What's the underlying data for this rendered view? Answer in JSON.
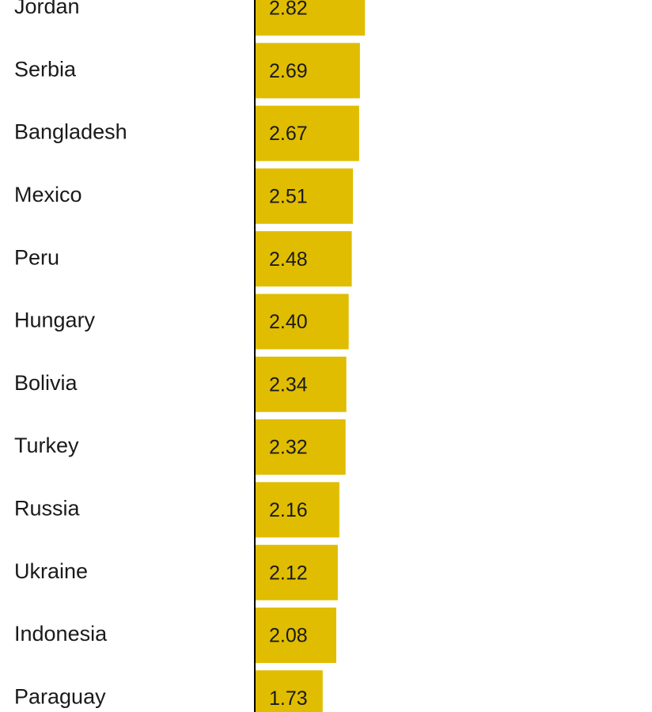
{
  "chart_data": {
    "type": "bar",
    "orientation": "horizontal",
    "categories": [
      "Jordan",
      "Serbia",
      "Bangladesh",
      "Mexico",
      "Peru",
      "Hungary",
      "Bolivia",
      "Turkey",
      "Russia",
      "Ukraine",
      "Indonesia",
      "Paraguay"
    ],
    "values": [
      2.82,
      2.69,
      2.67,
      2.51,
      2.48,
      2.4,
      2.34,
      2.32,
      2.16,
      2.12,
      2.08,
      1.73
    ],
    "value_labels": [
      "2.82",
      "2.69",
      "2.67",
      "2.51",
      "2.48",
      "2.40",
      "2.34",
      "2.32",
      "2.16",
      "2.12",
      "2.08",
      "1.73"
    ],
    "color": "#e0bd00",
    "xlim": [
      0,
      10.2
    ]
  }
}
